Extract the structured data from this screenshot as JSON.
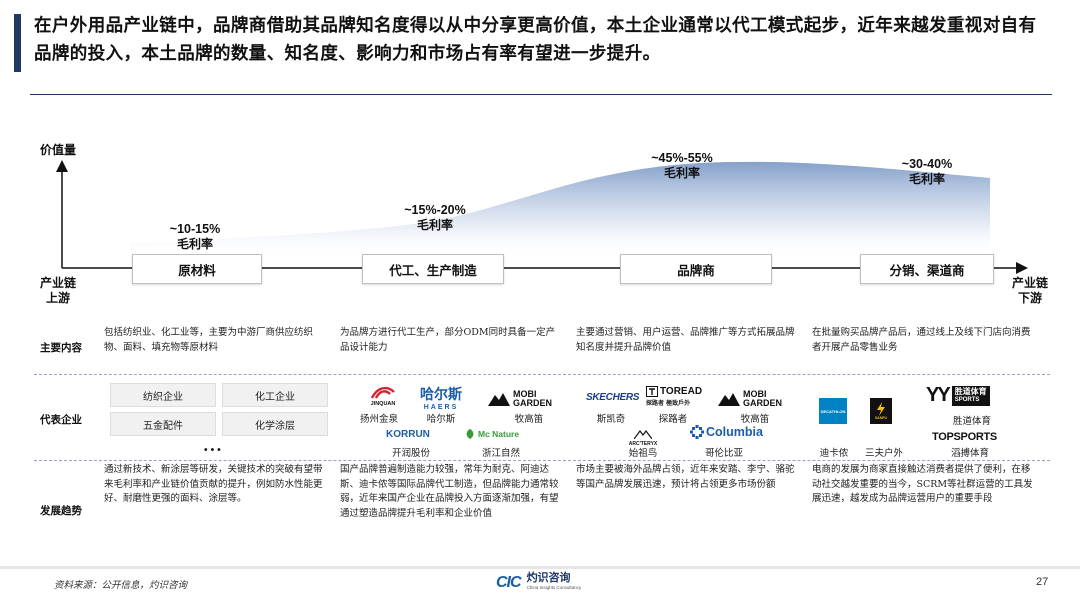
{
  "title": "在户外用品产业链中，品牌商借助其品牌知名度得以从中分享更高价值，本土企业通常以代工模式起步，近年来越发重视对自有品牌的投入，本土品牌的数量、知名度、影响力和市场占有率有望进一步提升。",
  "axis": {
    "y_label": "价值量",
    "left_line1": "产业链",
    "left_line2": "上游",
    "right_line1": "产业链",
    "right_line2": "下游"
  },
  "stages": [
    {
      "name": "原材料",
      "margin": "~10-15%",
      "margin_unit": "毛利率"
    },
    {
      "name": "代工、生产制造",
      "margin": "~15%-20%",
      "margin_unit": "毛利率"
    },
    {
      "name": "品牌商",
      "margin": "~45%-55%",
      "margin_unit": "毛利率"
    },
    {
      "name": "分销、渠道商",
      "margin": "~30-40%",
      "margin_unit": "毛利率"
    }
  ],
  "rows": {
    "content": "主要内容",
    "companies": "代表企业",
    "trend": "发展趋势"
  },
  "content": [
    "包括纺织业、化工业等，主要为中游厂商供应纺织物、面料、填充物等原材料",
    "为品牌方进行代工生产，部分ODM同时具备一定产品设计能力",
    "主要通过营销、用户运营、品牌推广等方式拓展品牌知名度并提升品牌价值",
    "在批量购买品牌产品后，通过线上及线下门店向消费者开展产品零售业务"
  ],
  "trend": [
    "通过新技术、新涂层等研发，关键技术的突破有望带来毛利率和产业链价值贡献的提升，例如防水性能更好、耐磨性更强的面料、涂层等。",
    "国产品牌普遍制造能力较强，常年为耐克、阿迪达斯、迪卡侬等国际品牌代工制造，但品牌能力通常较弱，近年来国产企业在品牌投入方面逐渐加强，有望通过塑造品牌提升毛利率和企业价值",
    "市场主要被海外品牌占领，近年来安踏、李宁、骆驼等国产品牌发展迅速，预计将占领更多市场份额",
    "电商的发展为商家直接触达消费者提供了便利，在移动社交越发重要的当今，SCRM等社群运营的工具发展迅速，越发成为品牌运营用户的重要手段"
  ],
  "raw_materials": {
    "categories": [
      "纺织企业",
      "化工企业",
      "五金配件",
      "化学涂层"
    ],
    "more": "..."
  },
  "manufacturers": {
    "logos": {
      "jinquan": "JINQUAN",
      "haers_cn": "哈尔斯",
      "haers_en": "HAERS",
      "mobi1": "MOBI",
      "mobi2": "GARDEN",
      "korrun": "KORRUN",
      "mcnature": "Mc Nature"
    },
    "names": [
      "扬州金泉",
      "哈尔斯",
      "牧高笛",
      "开润股份",
      "浙江自然"
    ]
  },
  "brands": {
    "logos": {
      "skechers": "SKECHERS",
      "toread_en": "TOREAD",
      "toread_cn": "探路者 極致戶外",
      "mobi1": "MOBI",
      "mobi2": "GARDEN",
      "arcteryx": "ARC'TERYX",
      "columbia": "Columbia"
    },
    "names": [
      "斯凯奇",
      "探路者",
      "牧高笛",
      "始祖鸟",
      "哥伦比亚"
    ]
  },
  "retailers": {
    "logos": {
      "decathlon": "DECATHLON",
      "sanfu": "SANFU",
      "topsports": "TOPSPORTS",
      "shengdao": "胜道体育",
      "shengdao_en": "SPORTS"
    },
    "names": [
      "迪卡侬",
      "三夫户外",
      "胜道体育",
      "滔搏体育"
    ]
  },
  "footer": {
    "source": "资料来源：公开信息，灼识咨询",
    "brand_cn": "灼识咨询",
    "brand_en": "China Insights Consultancy",
    "brand_logo": "CIC",
    "page": "27"
  },
  "colors": {
    "navy": "#1f3864",
    "curve_top": "#8ea9cf",
    "columbia_blue": "#1a5ea8",
    "korrun_orange": "#f28c00",
    "mcnature_green": "#3a9b3a",
    "mobi_red": "#d22630"
  }
}
